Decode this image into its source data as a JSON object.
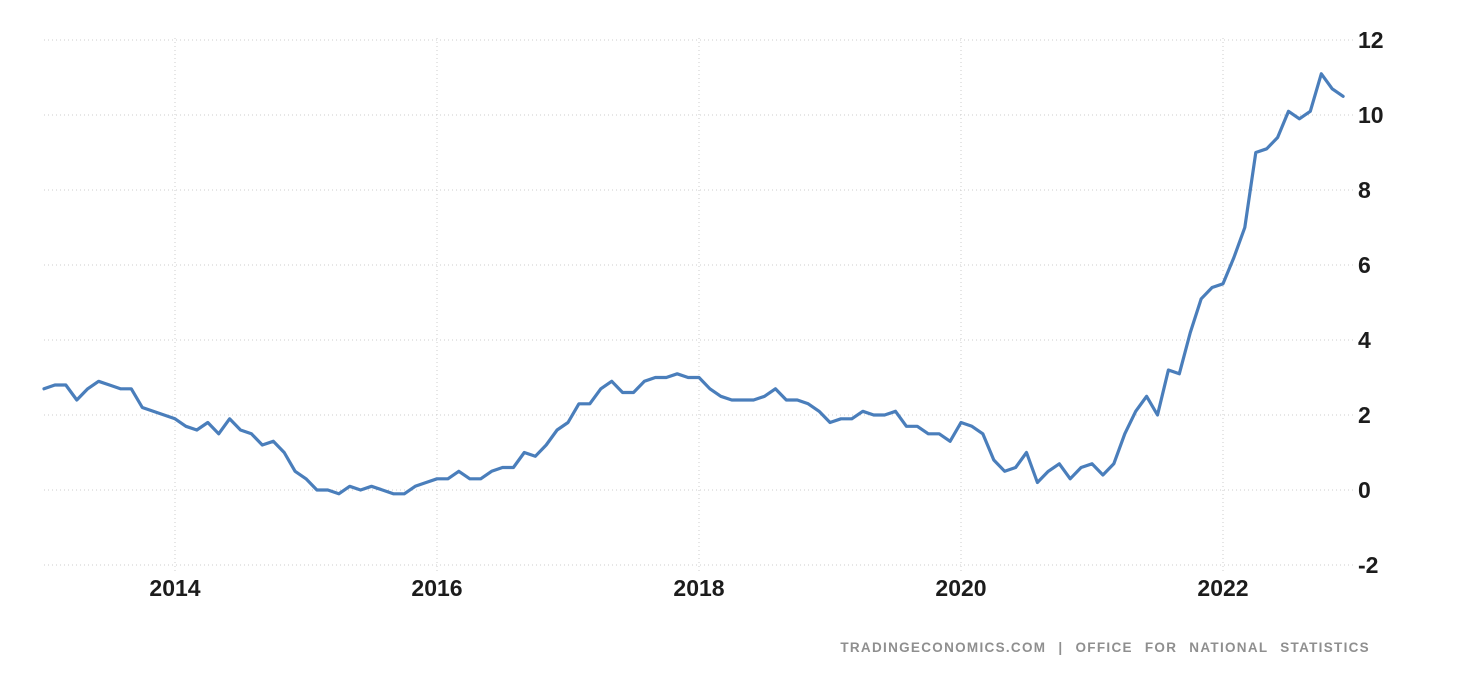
{
  "attribution": {
    "text": "TRADINGECONOMICS.COM  |  OFFICE  FOR  NATIONAL  STATISTICS"
  },
  "colors": {
    "line": "#4A7EBB",
    "grid": "#cccccc",
    "tick_label": "#1c1c1c",
    "attribution_text": "#8f8f8f",
    "background": "#ffffff"
  },
  "chart_data": {
    "type": "line",
    "title": "",
    "xlabel": "",
    "ylabel": "",
    "legend": "none",
    "grid": "dotted",
    "frequency": "monthly",
    "x_start": "2013-01",
    "x_end": "2022-12",
    "values": [
      2.7,
      2.8,
      2.8,
      2.4,
      2.7,
      2.9,
      2.8,
      2.7,
      2.7,
      2.2,
      2.1,
      2.0,
      1.9,
      1.7,
      1.6,
      1.8,
      1.5,
      1.9,
      1.6,
      1.5,
      1.2,
      1.3,
      1.0,
      0.5,
      0.3,
      0.0,
      0.0,
      -0.1,
      0.1,
      0.0,
      0.1,
      0.0,
      -0.1,
      -0.1,
      0.1,
      0.2,
      0.3,
      0.3,
      0.5,
      0.3,
      0.3,
      0.5,
      0.6,
      0.6,
      1.0,
      0.9,
      1.2,
      1.6,
      1.8,
      2.3,
      2.3,
      2.7,
      2.9,
      2.6,
      2.6,
      2.9,
      3.0,
      3.0,
      3.1,
      3.0,
      3.0,
      2.7,
      2.5,
      2.4,
      2.4,
      2.4,
      2.5,
      2.7,
      2.4,
      2.4,
      2.3,
      2.1,
      1.8,
      1.9,
      1.9,
      2.1,
      2.0,
      2.0,
      2.1,
      1.7,
      1.7,
      1.5,
      1.5,
      1.3,
      1.8,
      1.7,
      1.5,
      0.8,
      0.5,
      0.6,
      1.0,
      0.2,
      0.5,
      0.7,
      0.3,
      0.6,
      0.7,
      0.4,
      0.7,
      1.5,
      2.1,
      2.5,
      2.0,
      3.2,
      3.1,
      4.2,
      5.1,
      5.4,
      5.5,
      6.2,
      7.0,
      9.0,
      9.1,
      9.4,
      10.1,
      9.9,
      10.1,
      11.1,
      10.7,
      10.5
    ],
    "x_tick_years": [
      2014,
      2016,
      2018,
      2020,
      2022
    ],
    "x_tick_labels": [
      "2014",
      "2016",
      "2018",
      "2020",
      "2022"
    ],
    "y_ticks": [
      12,
      10,
      8,
      6,
      4,
      2,
      0,
      -2
    ],
    "y_tick_labels": [
      "12",
      "10",
      "8",
      "6",
      "4",
      "2",
      "0",
      "-2"
    ],
    "ylim": [
      -2,
      12
    ],
    "xlim_years": [
      2013.0,
      2023.0
    ],
    "y_axis_side": "right"
  }
}
